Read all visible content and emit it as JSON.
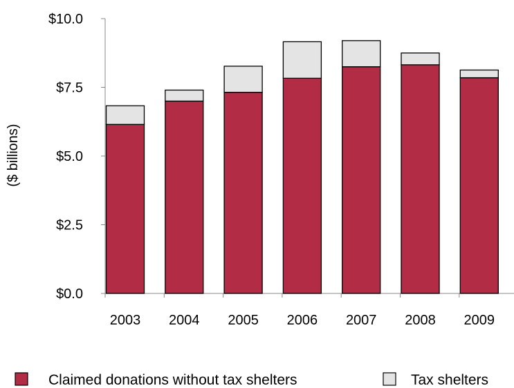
{
  "chart_data": {
    "type": "bar",
    "stacked": true,
    "categories": [
      "2003",
      "2004",
      "2005",
      "2006",
      "2007",
      "2008",
      "2009"
    ],
    "series": [
      {
        "name": "Claimed donations without tax shelters",
        "color": "#b22c46",
        "values": [
          6.15,
          7.0,
          7.32,
          7.83,
          8.25,
          8.32,
          7.85
        ]
      },
      {
        "name": "Tax shelters",
        "color": "#e4e4e4",
        "values": [
          0.68,
          0.4,
          0.95,
          1.33,
          0.95,
          0.43,
          0.28
        ]
      }
    ],
    "ylabel": "($ billions)",
    "ylim": [
      0,
      10
    ],
    "yticks": [
      0,
      2.5,
      5,
      7.5,
      10
    ],
    "ytick_labels": [
      "$0.0",
      "$2.5",
      "$5.0",
      "$7.5",
      "$10.0"
    ],
    "grid": false,
    "legend_position": "bottom"
  }
}
